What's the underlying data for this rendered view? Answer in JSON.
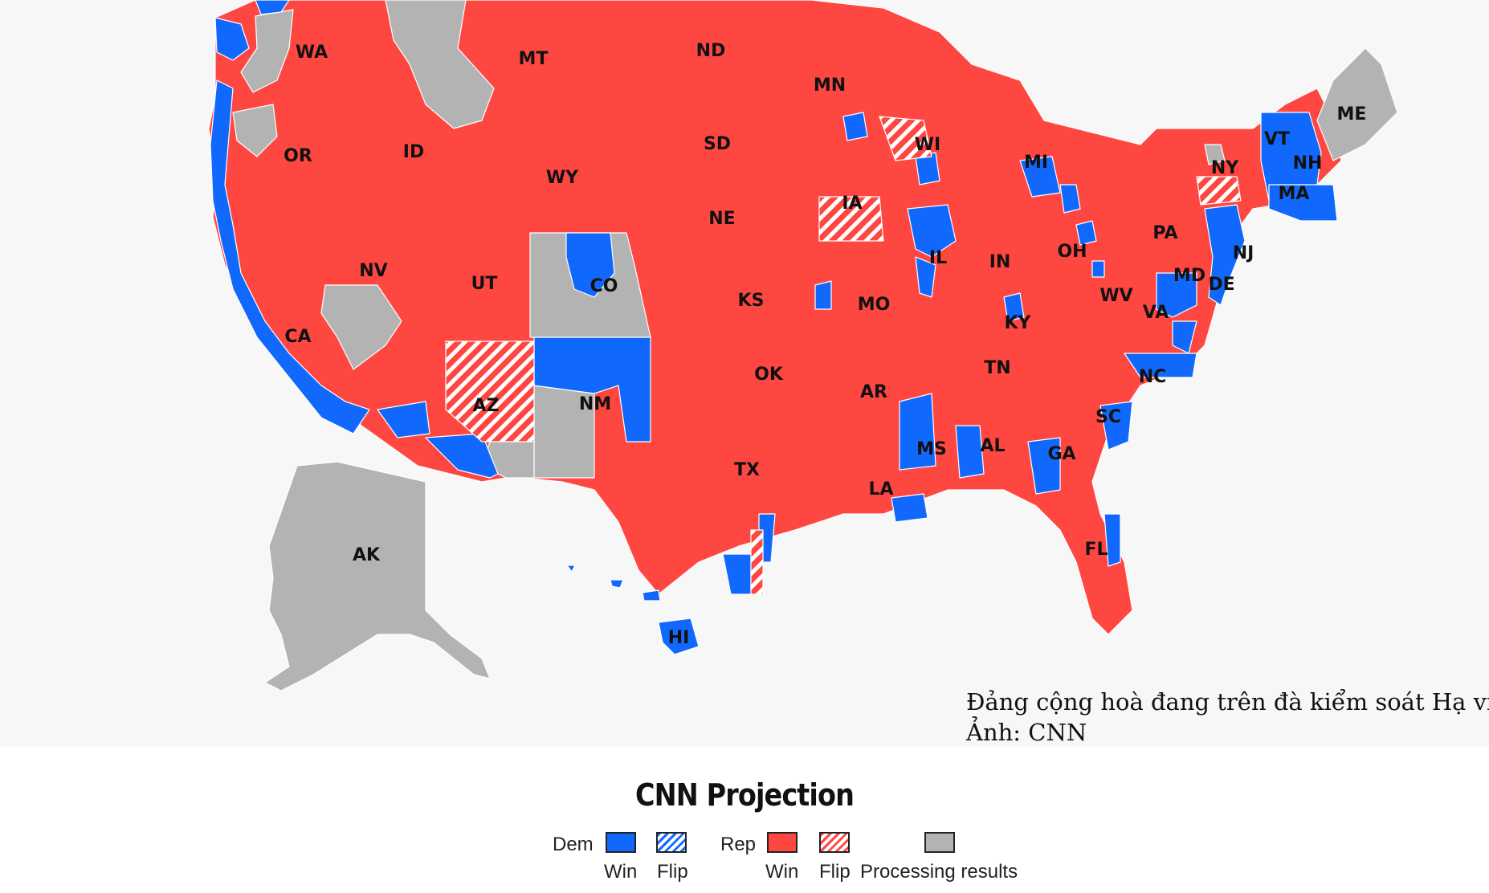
{
  "colors": {
    "dem": "#1168fd",
    "rep": "#ff4742",
    "processing": "#b3b3b3",
    "background": "#f7f7f7"
  },
  "map": {
    "state_labels": [
      "WA",
      "MT",
      "ND",
      "MN",
      "ME",
      "OR",
      "ID",
      "SD",
      "WI",
      "VT",
      "NY",
      "NH",
      "MI",
      "WY",
      "MA",
      "IA",
      "NE",
      "PA",
      "NJ",
      "IN",
      "OH",
      "IL",
      "NV",
      "UT",
      "CO",
      "MD",
      "DE",
      "KS",
      "MO",
      "WV",
      "VA",
      "KY",
      "CA",
      "TN",
      "NC",
      "OK",
      "AR",
      "AZ",
      "NM",
      "SC",
      "AL",
      "MS",
      "GA",
      "TX",
      "LA",
      "FL",
      "AK",
      "HI"
    ]
  },
  "caption": {
    "line1": "Đảng cộng hoà đang trên đà kiểm soát Hạ viện.",
    "line2": "Ảnh: CNN"
  },
  "legend": {
    "title": "CNN Projection",
    "dem_label": "Dem",
    "rep_label": "Rep",
    "win_label": "Win",
    "flip_label": "Flip",
    "processing_label": "Processing results"
  }
}
